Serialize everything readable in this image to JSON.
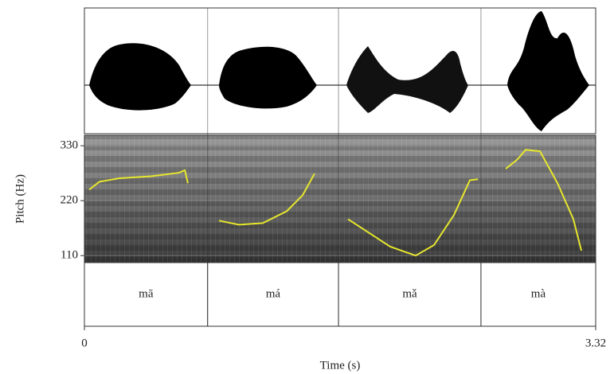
{
  "chart_data": {
    "type": "line",
    "x_label": "Time (s)",
    "y_label": "Pitch (Hz)",
    "xlim": [
      0,
      3.32
    ],
    "xticks": [
      0,
      3.32
    ],
    "ylim": [
      96,
      351
    ],
    "yticks": [
      110,
      220,
      330
    ],
    "tier_boundaries": [
      0.8,
      1.65,
      2.575
    ],
    "tier_labels": [
      "mā",
      "má",
      "mǎ",
      "mà"
    ],
    "series": [
      {
        "color": "#e6e62e",
        "x": [
          0.031,
          0.098,
          0.228,
          0.434,
          0.615,
          0.652,
          0.672,
          null,
          0.874,
          1.003,
          1.158,
          1.314,
          1.417,
          1.494,
          null,
          1.712,
          1.831,
          1.986,
          2.151,
          2.27,
          2.399,
          2.503,
          2.555,
          null,
          2.736,
          2.813,
          2.865,
          2.958,
          3.072,
          3.175,
          3.227
        ],
        "values": [
          242,
          258,
          265,
          269,
          276,
          281,
          255,
          null,
          180,
          172,
          175,
          199,
          231,
          274,
          null,
          183,
          159,
          128,
          110,
          131,
          191,
          261,
          263,
          null,
          284,
          303,
          322,
          319,
          255,
          183,
          120
        ]
      }
    ]
  }
}
